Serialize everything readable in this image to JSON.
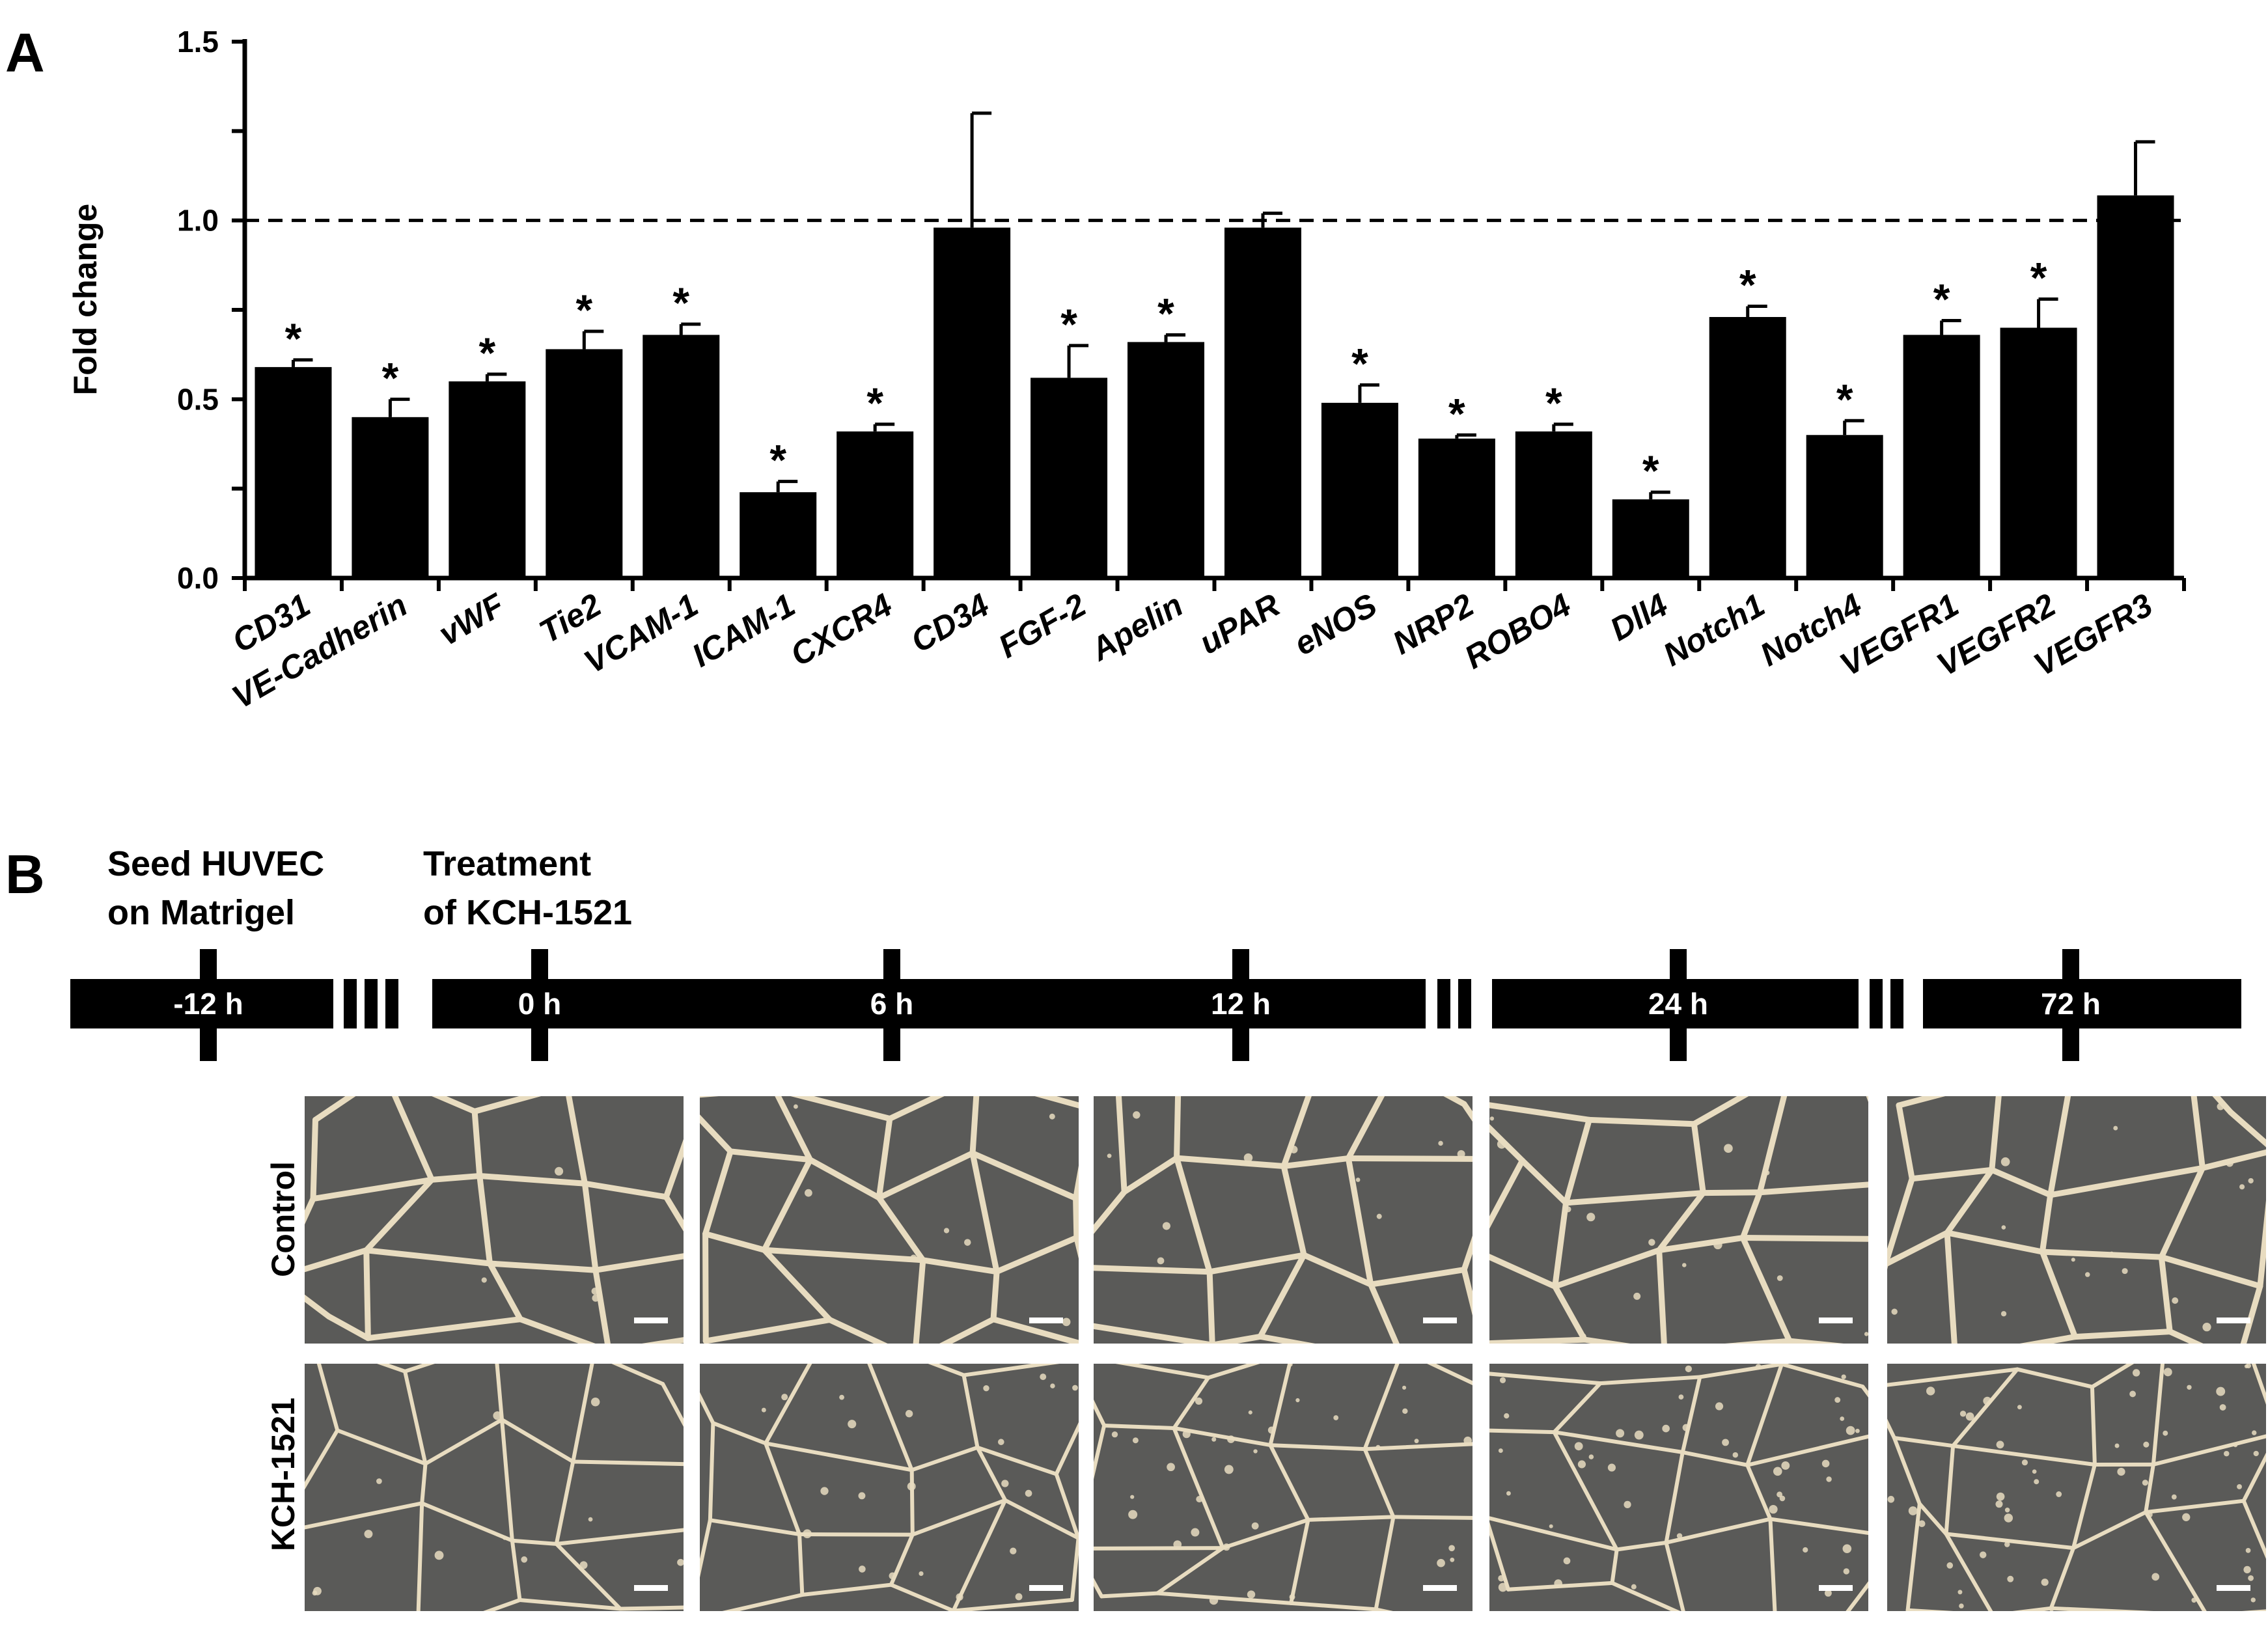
{
  "panel_a_letter": "A",
  "panel_b_letter": "B",
  "chart_data": {
    "type": "bar",
    "ylabel": "Fold change",
    "xlabel": "",
    "ylim": [
      0,
      1.5
    ],
    "yticks": [
      "0.0",
      "0.5",
      "1.0",
      "1.5"
    ],
    "reference_line": 1.0,
    "categories": [
      "CD31",
      "VE-Cadherin",
      "vWF",
      "Tie2",
      "VCAM-1",
      "ICAM-1",
      "CXCR4",
      "CD34",
      "FGF-2",
      "Apelin",
      "uPAR",
      "eNOS",
      "NRP2",
      "ROBO4",
      "Dll4",
      "Notch1",
      "Notch4",
      "VEGFR1",
      "VEGFR2",
      "VEGFR3"
    ],
    "values": [
      0.59,
      0.45,
      0.55,
      0.64,
      0.68,
      0.24,
      0.41,
      0.98,
      0.56,
      0.66,
      0.98,
      0.49,
      0.39,
      0.41,
      0.22,
      0.73,
      0.4,
      0.68,
      0.7,
      1.07
    ],
    "errors": [
      0.02,
      0.05,
      0.02,
      0.05,
      0.03,
      0.03,
      0.02,
      0.32,
      0.09,
      0.02,
      0.04,
      0.05,
      0.01,
      0.02,
      0.02,
      0.03,
      0.04,
      0.04,
      0.08,
      0.15
    ],
    "significant": [
      true,
      true,
      true,
      true,
      true,
      true,
      true,
      false,
      true,
      true,
      false,
      true,
      true,
      true,
      true,
      true,
      true,
      true,
      true,
      false
    ],
    "significance_mark": "*",
    "bar_color": "#000000"
  },
  "timeline": {
    "notes": [
      {
        "line1": "Seed HUVEC",
        "line2": "on Matrigel"
      },
      {
        "line1": "Treatment",
        "line2": "of KCH-1521"
      }
    ],
    "timepoints": [
      "-12 h",
      "0 h",
      "6 h",
      "12 h",
      "24 h",
      "72 h"
    ]
  },
  "micrographs": {
    "rows": [
      "Control",
      "KCH-1521"
    ],
    "columns": [
      "0 h",
      "6 h",
      "12 h",
      "24 h",
      "72 h"
    ],
    "background_color": "#5a5a58",
    "tube_color": "#e8dcc0"
  }
}
